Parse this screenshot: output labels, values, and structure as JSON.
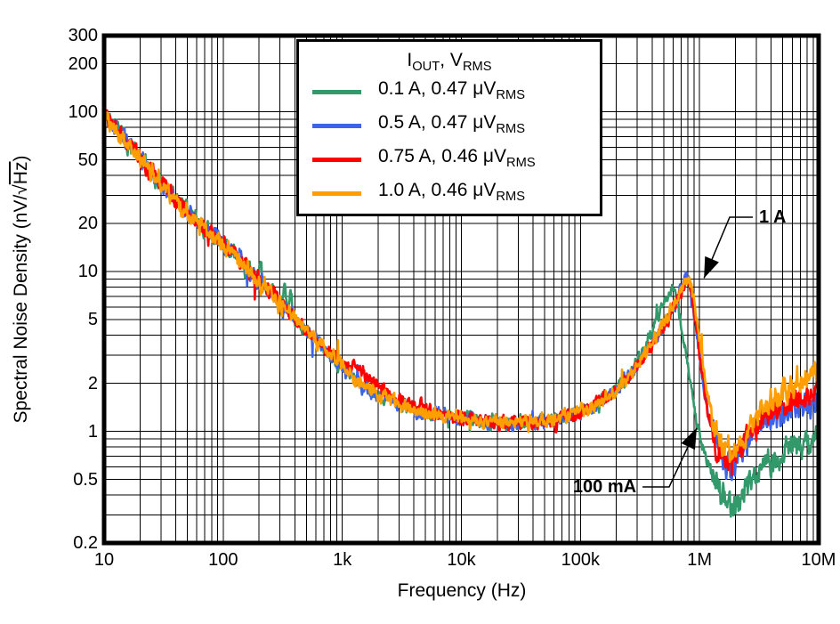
{
  "chart_data": {
    "type": "line",
    "title": "",
    "xlabel": "Frequency (Hz)",
    "ylabel": "Spectral Noise Density (nV/√Hz)",
    "ylabel_parts": {
      "prefix": "Spectral Noise Density (nV/√",
      "overline": "Hz",
      "suffix": ")"
    },
    "x_axis": {
      "scale": "log",
      "min": 10,
      "max": 10000000,
      "ticks": [
        {
          "v": 10,
          "label": "10"
        },
        {
          "v": 100,
          "label": "100"
        },
        {
          "v": 1000,
          "label": "1k"
        },
        {
          "v": 10000,
          "label": "10k"
        },
        {
          "v": 100000,
          "label": "100k"
        },
        {
          "v": 1000000,
          "label": "1M"
        },
        {
          "v": 10000000,
          "label": "10M"
        }
      ]
    },
    "y_axis": {
      "scale": "log",
      "min": 0.2,
      "max": 300,
      "ticks": [
        {
          "v": 300,
          "label": "300"
        },
        {
          "v": 200,
          "label": "200"
        },
        {
          "v": 100,
          "label": "100"
        },
        {
          "v": 50,
          "label": "50"
        },
        {
          "v": 20,
          "label": "20"
        },
        {
          "v": 10,
          "label": "10"
        },
        {
          "v": 5,
          "label": "5"
        },
        {
          "v": 2,
          "label": "2"
        },
        {
          "v": 1,
          "label": "1"
        },
        {
          "v": 0.5,
          "label": "0.5"
        },
        {
          "v": 0.2,
          "label": "0.2"
        }
      ]
    },
    "grid": {
      "minor_per_decade": true,
      "color": "#000000"
    },
    "legend": {
      "position": "top-center",
      "title": "I[OUT], V[RMS]"
    },
    "series": [
      {
        "name": "0.1 A",
        "legend_label": "0.1 A, 0.47 μV[RMS]",
        "color": "#33996B",
        "seed": 7,
        "anchors": [
          [
            10,
            100
          ],
          [
            13,
            76
          ],
          [
            17,
            60
          ],
          [
            22,
            47
          ],
          [
            30,
            36
          ],
          [
            40,
            28
          ],
          [
            55,
            22
          ],
          [
            75,
            17.5
          ],
          [
            100,
            15
          ],
          [
            130,
            12
          ],
          [
            170,
            9.8
          ],
          [
            220,
            8.2
          ],
          [
            300,
            6.4
          ],
          [
            400,
            5.1
          ],
          [
            550,
            4.0
          ],
          [
            750,
            3.1
          ],
          [
            1000,
            2.5
          ],
          [
            1400,
            2.0
          ],
          [
            2000,
            1.7
          ],
          [
            3000,
            1.5
          ],
          [
            4500,
            1.35
          ],
          [
            7000,
            1.25
          ],
          [
            10000,
            1.2
          ],
          [
            15000,
            1.16
          ],
          [
            22000,
            1.13
          ],
          [
            33000,
            1.13
          ],
          [
            50000,
            1.16
          ],
          [
            70000,
            1.22
          ],
          [
            100000,
            1.33
          ],
          [
            140000,
            1.5
          ],
          [
            200000,
            1.8
          ],
          [
            280000,
            2.4
          ],
          [
            400000,
            4.3
          ],
          [
            480000,
            6.1
          ],
          [
            550000,
            7.5
          ],
          [
            610000,
            7.3
          ],
          [
            660000,
            6.0
          ],
          [
            720000,
            4.0
          ],
          [
            800000,
            2.4
          ],
          [
            870000,
            1.7
          ],
          [
            950000,
            1.1
          ],
          [
            1050000,
            0.82
          ],
          [
            1200000,
            0.62
          ],
          [
            1400000,
            0.48
          ],
          [
            1650000,
            0.37
          ],
          [
            1900000,
            0.335
          ],
          [
            2200000,
            0.4
          ],
          [
            2700000,
            0.5
          ],
          [
            3500000,
            0.62
          ],
          [
            5000000,
            0.74
          ],
          [
            7000000,
            0.84
          ],
          [
            10000000,
            0.93
          ]
        ],
        "spikes": [
          {
            "f": 205,
            "gain": 1.3
          },
          {
            "f": 328,
            "gain": 1.42
          },
          {
            "f": 368,
            "gain": 1.35
          }
        ]
      },
      {
        "name": "0.5 A",
        "legend_label": "0.5 A, 0.47 μV[RMS]",
        "color": "#3D64E8",
        "seed": 13,
        "anchors": [
          [
            10,
            100
          ],
          [
            13,
            76
          ],
          [
            17,
            60
          ],
          [
            22,
            47
          ],
          [
            30,
            36
          ],
          [
            40,
            28
          ],
          [
            55,
            22
          ],
          [
            75,
            17.5
          ],
          [
            100,
            15
          ],
          [
            130,
            12
          ],
          [
            170,
            9.8
          ],
          [
            220,
            8.2
          ],
          [
            300,
            6.4
          ],
          [
            400,
            5.1
          ],
          [
            550,
            4.0
          ],
          [
            750,
            3.1
          ],
          [
            1000,
            2.5
          ],
          [
            1400,
            2.0
          ],
          [
            2000,
            1.7
          ],
          [
            3000,
            1.5
          ],
          [
            4500,
            1.35
          ],
          [
            7000,
            1.25
          ],
          [
            10000,
            1.2
          ],
          [
            15000,
            1.16
          ],
          [
            22000,
            1.13
          ],
          [
            33000,
            1.13
          ],
          [
            50000,
            1.16
          ],
          [
            70000,
            1.22
          ],
          [
            100000,
            1.33
          ],
          [
            140000,
            1.5
          ],
          [
            200000,
            1.8
          ],
          [
            280000,
            2.4
          ],
          [
            400000,
            3.5
          ],
          [
            500000,
            4.6
          ],
          [
            600000,
            6.0
          ],
          [
            700000,
            7.9
          ],
          [
            760000,
            9.4
          ],
          [
            820000,
            8.2
          ],
          [
            880000,
            6.0
          ],
          [
            960000,
            3.8
          ],
          [
            1060000,
            2.2
          ],
          [
            1200000,
            1.25
          ],
          [
            1400000,
            0.82
          ],
          [
            1600000,
            0.64
          ],
          [
            1800000,
            0.585
          ],
          [
            2100000,
            0.68
          ],
          [
            2600000,
            0.9
          ],
          [
            3300000,
            1.08
          ],
          [
            4500000,
            1.25
          ],
          [
            6000000,
            1.38
          ],
          [
            8000000,
            1.45
          ],
          [
            10000000,
            1.5
          ]
        ],
        "spikes": [
          {
            "f": 140,
            "gain": 1.15
          },
          {
            "f": 4200,
            "gain": 0.86
          }
        ]
      },
      {
        "name": "0.75 A",
        "legend_label": "0.75 A, 0.46 μV[RMS]",
        "color": "#FF0000",
        "seed": 29,
        "anchors": [
          [
            10,
            100
          ],
          [
            13,
            76
          ],
          [
            17,
            60
          ],
          [
            22,
            47
          ],
          [
            30,
            36
          ],
          [
            40,
            28
          ],
          [
            55,
            22
          ],
          [
            75,
            17.5
          ],
          [
            100,
            15
          ],
          [
            130,
            12
          ],
          [
            170,
            9.8
          ],
          [
            220,
            8.2
          ],
          [
            300,
            6.4
          ],
          [
            400,
            5.1
          ],
          [
            550,
            4.0
          ],
          [
            750,
            3.2
          ],
          [
            1000,
            2.7
          ],
          [
            1300,
            2.35
          ],
          [
            1700,
            2.15
          ],
          [
            2300,
            1.8
          ],
          [
            3200,
            1.55
          ],
          [
            4500,
            1.38
          ],
          [
            7000,
            1.25
          ],
          [
            10000,
            1.2
          ],
          [
            15000,
            1.16
          ],
          [
            22000,
            1.13
          ],
          [
            33000,
            1.13
          ],
          [
            50000,
            1.16
          ],
          [
            70000,
            1.22
          ],
          [
            100000,
            1.33
          ],
          [
            140000,
            1.5
          ],
          [
            200000,
            1.8
          ],
          [
            280000,
            2.4
          ],
          [
            400000,
            3.5
          ],
          [
            500000,
            4.5
          ],
          [
            600000,
            5.9
          ],
          [
            700000,
            7.7
          ],
          [
            770000,
            9.0
          ],
          [
            830000,
            7.9
          ],
          [
            890000,
            5.8
          ],
          [
            970000,
            3.6
          ],
          [
            1070000,
            2.1
          ],
          [
            1200000,
            1.2
          ],
          [
            1400000,
            0.8
          ],
          [
            1600000,
            0.65
          ],
          [
            1850000,
            0.6
          ],
          [
            2150000,
            0.72
          ],
          [
            2600000,
            0.95
          ],
          [
            3300000,
            1.2
          ],
          [
            4500000,
            1.4
          ],
          [
            6000000,
            1.55
          ],
          [
            8000000,
            1.65
          ],
          [
            10000000,
            1.75
          ]
        ],
        "spikes": [
          {
            "f": 1250,
            "gain": 1.12
          },
          {
            "f": 62000,
            "gain": 0.85
          }
        ]
      },
      {
        "name": "1.0 A",
        "legend_label": "1.0 A, 0.46 μV[RMS]",
        "color": "#FF9E00",
        "seed": 47,
        "anchors": [
          [
            10,
            100
          ],
          [
            13,
            76
          ],
          [
            17,
            60
          ],
          [
            22,
            47
          ],
          [
            30,
            36
          ],
          [
            40,
            28
          ],
          [
            55,
            22
          ],
          [
            75,
            17.5
          ],
          [
            100,
            15
          ],
          [
            130,
            12
          ],
          [
            170,
            9.8
          ],
          [
            220,
            8.2
          ],
          [
            300,
            6.4
          ],
          [
            400,
            5.1
          ],
          [
            550,
            4.0
          ],
          [
            750,
            3.1
          ],
          [
            1000,
            2.5
          ],
          [
            1400,
            2.0
          ],
          [
            2000,
            1.7
          ],
          [
            3000,
            1.5
          ],
          [
            4500,
            1.35
          ],
          [
            7000,
            1.25
          ],
          [
            10000,
            1.2
          ],
          [
            15000,
            1.16
          ],
          [
            22000,
            1.13
          ],
          [
            33000,
            1.13
          ],
          [
            50000,
            1.16
          ],
          [
            70000,
            1.22
          ],
          [
            100000,
            1.33
          ],
          [
            140000,
            1.5
          ],
          [
            200000,
            1.8
          ],
          [
            280000,
            2.4
          ],
          [
            400000,
            3.6
          ],
          [
            500000,
            4.7
          ],
          [
            600000,
            6.1
          ],
          [
            700000,
            7.8
          ],
          [
            790000,
            9.2
          ],
          [
            860000,
            8.2
          ],
          [
            930000,
            5.6
          ],
          [
            1020000,
            3.2
          ],
          [
            1150000,
            1.8
          ],
          [
            1300000,
            1.15
          ],
          [
            1500000,
            0.88
          ],
          [
            1700000,
            0.76
          ],
          [
            1900000,
            0.73
          ],
          [
            2200000,
            0.85
          ],
          [
            2700000,
            1.1
          ],
          [
            3400000,
            1.4
          ],
          [
            4500000,
            1.65
          ],
          [
            6000000,
            1.9
          ],
          [
            8000000,
            2.1
          ],
          [
            10000000,
            2.3
          ]
        ],
        "spikes": []
      }
    ],
    "annotations": [
      {
        "text": "1 A",
        "align": "left",
        "points": [
          {
            "f": 2800000,
            "v": 21.9
          },
          {
            "f": 1790000,
            "v": 21.9
          },
          {
            "f": 1090000,
            "v": 9.1
          }
        ]
      },
      {
        "text": "100 mA",
        "align": "right",
        "points": [
          {
            "f": 332000,
            "v": 0.449
          },
          {
            "f": 556000,
            "v": 0.449
          },
          {
            "f": 947000,
            "v": 1.05
          }
        ]
      }
    ]
  },
  "colors": {
    "background": "#ffffff",
    "frame": "#000000",
    "grid": "#000000",
    "text": "#000000"
  }
}
